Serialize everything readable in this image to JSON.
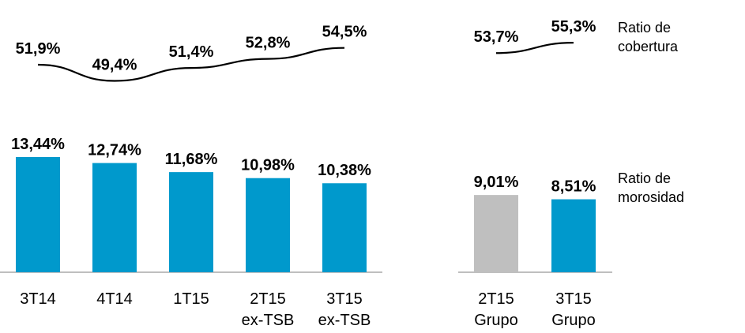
{
  "chart_data": [
    {
      "type": "line",
      "series": [
        {
          "name": "Ratio de cobertura",
          "categories": [
            "3T14",
            "4T14",
            "1T15",
            "2T15 ex-TSB",
            "3T15 ex-TSB"
          ],
          "values": [
            51.9,
            49.4,
            51.4,
            52.8,
            54.5
          ],
          "labels": [
            "51,9%",
            "49,4%",
            "51,4%",
            "52,8%",
            "54,5%"
          ]
        },
        {
          "name": "Ratio de cobertura",
          "categories": [
            "2T15 Grupo",
            "3T15 Grupo"
          ],
          "values": [
            53.7,
            55.3
          ],
          "labels": [
            "53,7%",
            "55,3%"
          ]
        }
      ]
    },
    {
      "type": "bar",
      "series": [
        {
          "name": "Ratio de morosidad",
          "categories": [
            "3T14",
            "4T14",
            "1T15",
            "2T15 ex-TSB",
            "3T15 ex-TSB"
          ],
          "values": [
            13.44,
            12.74,
            11.68,
            10.98,
            10.38
          ],
          "labels": [
            "13,44%",
            "12,74%",
            "11,68%",
            "10,98%",
            "10,38%"
          ],
          "color": "#0099CC"
        },
        {
          "name": "Ratio de morosidad",
          "categories": [
            "2T15 Grupo",
            "3T15 Grupo"
          ],
          "values": [
            9.01,
            8.51
          ],
          "labels": [
            "9,01%",
            "8,51%"
          ],
          "colors": [
            "#BFBFBF",
            "#0099CC"
          ]
        }
      ]
    }
  ],
  "axis": {
    "left_labels": [
      [
        "3T14"
      ],
      [
        "4T14"
      ],
      [
        "1T15"
      ],
      [
        "2T15",
        "ex-TSB"
      ],
      [
        "3T15",
        "ex-TSB"
      ]
    ],
    "right_labels": [
      [
        "2T15",
        "Grupo"
      ],
      [
        "3T15",
        "Grupo"
      ]
    ]
  },
  "legend": {
    "cobertura_line1": "Ratio de",
    "cobertura_line2": "cobertura",
    "morosidad_line1": "Ratio de",
    "morosidad_line2": "morosidad"
  },
  "colors": {
    "bar_blue": "#0099CC",
    "bar_grey": "#BFBFBF",
    "axis": "#7F7F7F",
    "line": "#000000"
  }
}
